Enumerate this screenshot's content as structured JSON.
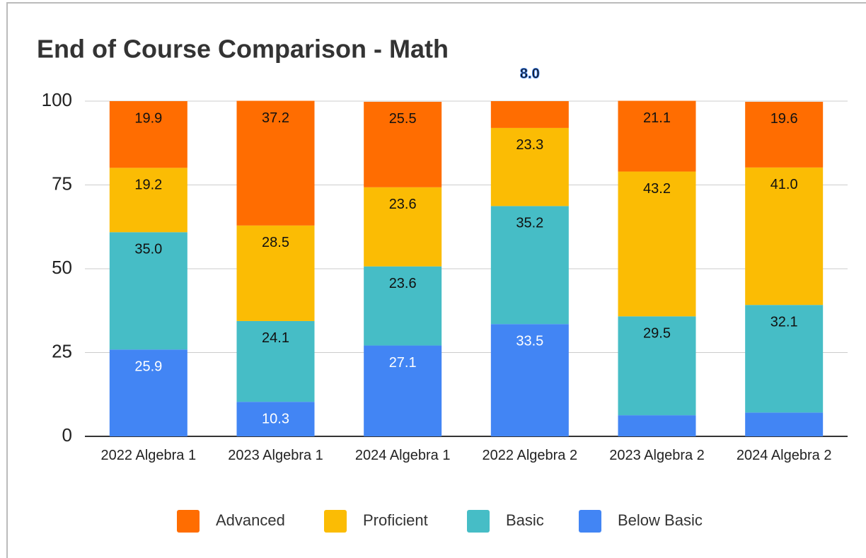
{
  "chart_data": {
    "type": "stacked_bar",
    "title": "End of Course Comparison - Math",
    "categories": [
      "2022 Algebra 1",
      "2023 Algebra 1",
      "2024 Algebra 1",
      "2022 Algebra 2",
      "2023 Algebra 2",
      "2024 Algebra 2"
    ],
    "series": [
      {
        "name": "Advanced",
        "color": "#ff6d01",
        "values": [
          19.9,
          37.2,
          25.5,
          8.0,
          21.1,
          19.6
        ],
        "value_labels": [
          "19.9",
          "37.2",
          "25.5",
          "8.0",
          "21.1",
          "19.6"
        ]
      },
      {
        "name": "Proficient",
        "color": "#fbbc04",
        "values": [
          19.2,
          28.5,
          23.6,
          23.3,
          43.2,
          41.0
        ],
        "value_labels": [
          "19.2",
          "28.5",
          "23.6",
          "23.3",
          "43.2",
          "41.0"
        ]
      },
      {
        "name": "Basic",
        "color": "#46bdc6",
        "values": [
          35.0,
          24.1,
          23.6,
          35.2,
          29.5,
          32.1
        ],
        "value_labels": [
          "35.0",
          "24.1",
          "23.6",
          "35.2",
          "29.5",
          "32.1"
        ]
      },
      {
        "name": "Below Basic",
        "color": "#4285f4",
        "values": [
          25.9,
          10.3,
          27.1,
          33.5,
          6.3,
          7.1
        ],
        "value_labels": [
          "25.9",
          "10.3",
          "27.1",
          "33.5",
          "6.3",
          "7.1"
        ]
      }
    ],
    "ylim": [
      0,
      100
    ],
    "yticks": [
      0,
      25,
      50,
      75,
      100
    ],
    "grid": true,
    "legend": "bottom"
  }
}
